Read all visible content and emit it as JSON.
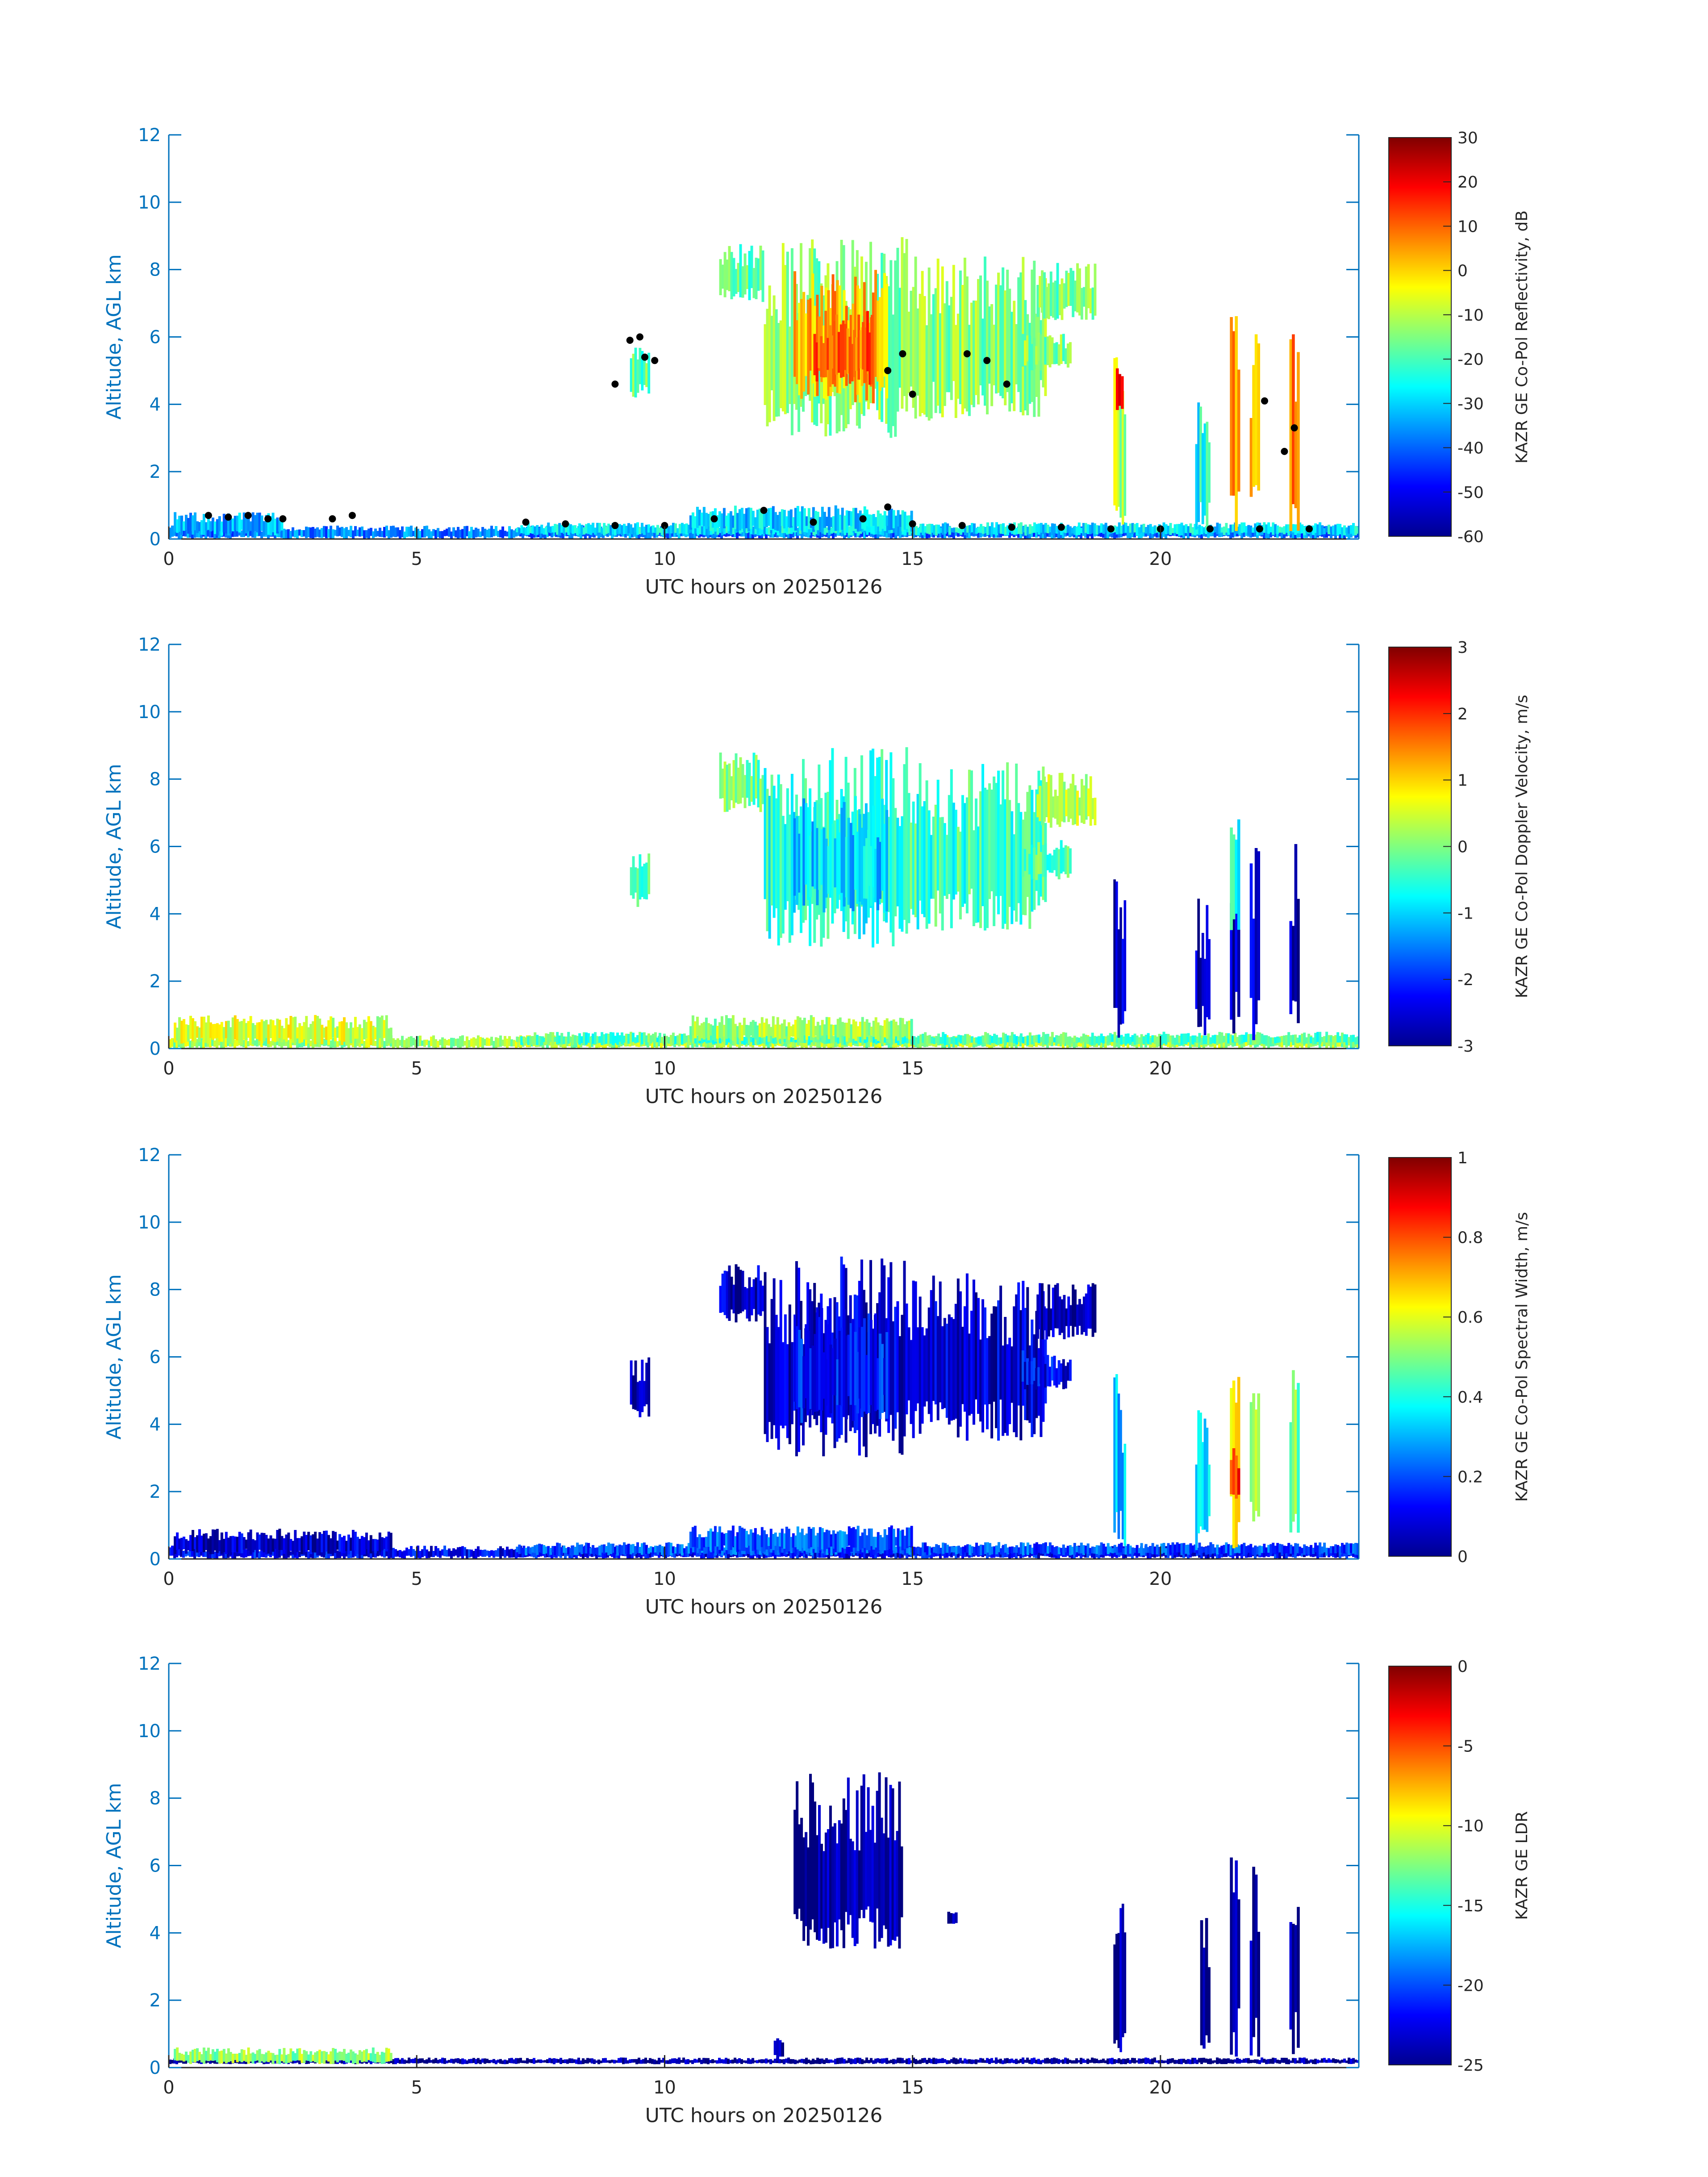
{
  "colors": {
    "axis": "#0072bd",
    "text": "#262626",
    "background": "#ffffff",
    "colormap": "jet"
  },
  "chart_data": [
    {
      "type": "heatmap",
      "xlabel": "UTC hours on 20250126",
      "ylabel": "Altitude, AGL km",
      "xlim": [
        0,
        24
      ],
      "ylim": [
        0,
        12
      ],
      "xticks": [
        "0",
        "5",
        "10",
        "15",
        "20"
      ],
      "xtick_values": [
        0,
        5,
        10,
        15,
        20
      ],
      "yticks": [
        "0",
        "2",
        "4",
        "6",
        "8",
        "10",
        "12"
      ],
      "ytick_values": [
        0,
        2,
        4,
        6,
        8,
        10,
        12
      ],
      "colorbar": {
        "label": "KAZR GE Co-Pol Reflectivity, dB",
        "range": [
          -60,
          30
        ],
        "ticks": [
          "-60",
          "-50",
          "-40",
          "-30",
          "-20",
          "-10",
          "0",
          "10",
          "20",
          "30"
        ],
        "tick_values": [
          -60,
          -50,
          -40,
          -30,
          -20,
          -10,
          0,
          10,
          20,
          30
        ]
      },
      "regions": [
        {
          "x0": 0,
          "x1": 24,
          "y0": 0,
          "y1": 0.4,
          "value": -38
        },
        {
          "x0": 0.1,
          "x1": 2.3,
          "y0": 0.1,
          "y1": 0.8,
          "value": -33
        },
        {
          "x0": 7.0,
          "x1": 24,
          "y0": 0.1,
          "y1": 0.5,
          "value": -28
        },
        {
          "x0": 10.5,
          "x1": 15.0,
          "y0": 0.2,
          "y1": 1.0,
          "value": -30
        },
        {
          "x0": 9.3,
          "x1": 9.7,
          "y0": 4.2,
          "y1": 6.0,
          "value": -18
        },
        {
          "x0": 11.1,
          "x1": 12.0,
          "y0": 7.0,
          "y1": 8.8,
          "value": -18
        },
        {
          "x0": 12.0,
          "x1": 14.9,
          "y0": 3.0,
          "y1": 9.0,
          "value": -15
        },
        {
          "x0": 12.6,
          "x1": 14.5,
          "y0": 4.0,
          "y1": 8.0,
          "value": 3
        },
        {
          "x0": 13.0,
          "x1": 14.2,
          "y0": 4.5,
          "y1": 6.8,
          "value": 10
        },
        {
          "x0": 14.9,
          "x1": 17.7,
          "y0": 3.5,
          "y1": 8.5,
          "value": -14
        },
        {
          "x0": 17.5,
          "x1": 18.7,
          "y0": 6.5,
          "y1": 8.2,
          "value": -15
        },
        {
          "x0": 17.2,
          "x1": 18.2,
          "y0": 5.0,
          "y1": 6.2,
          "value": -15
        },
        {
          "x0": 19.05,
          "x1": 19.3,
          "y0": 0.2,
          "y1": 5.5,
          "value": -10
        },
        {
          "x0": 19.1,
          "x1": 19.25,
          "y0": 3.8,
          "y1": 5.3,
          "value": 15
        },
        {
          "x0": 20.7,
          "x1": 21.0,
          "y0": 0.2,
          "y1": 4.5,
          "value": -25
        },
        {
          "x0": 21.4,
          "x1": 21.6,
          "y0": 0.2,
          "y1": 6.9,
          "value": 5
        },
        {
          "x0": 21.8,
          "x1": 22.0,
          "y0": 0.2,
          "y1": 6.3,
          "value": 5
        },
        {
          "x0": 22.6,
          "x1": 22.8,
          "y0": 0.2,
          "y1": 6.1,
          "value": 8
        }
      ],
      "markers": [
        {
          "x": 0.8,
          "y": 0.7
        },
        {
          "x": 1.2,
          "y": 0.65
        },
        {
          "x": 1.6,
          "y": 0.7
        },
        {
          "x": 2.0,
          "y": 0.6
        },
        {
          "x": 2.3,
          "y": 0.6
        },
        {
          "x": 3.3,
          "y": 0.6
        },
        {
          "x": 3.7,
          "y": 0.7
        },
        {
          "x": 7.2,
          "y": 0.5
        },
        {
          "x": 8.0,
          "y": 0.45
        },
        {
          "x": 9.0,
          "y": 0.4
        },
        {
          "x": 10.0,
          "y": 0.4
        },
        {
          "x": 11.0,
          "y": 0.6
        },
        {
          "x": 12.0,
          "y": 0.85
        },
        {
          "x": 13.0,
          "y": 0.5
        },
        {
          "x": 14.0,
          "y": 0.6
        },
        {
          "x": 14.5,
          "y": 0.95
        },
        {
          "x": 15.0,
          "y": 0.45
        },
        {
          "x": 16.0,
          "y": 0.4
        },
        {
          "x": 17.0,
          "y": 0.35
        },
        {
          "x": 18.0,
          "y": 0.35
        },
        {
          "x": 19.0,
          "y": 0.3
        },
        {
          "x": 20.0,
          "y": 0.3
        },
        {
          "x": 21.0,
          "y": 0.3
        },
        {
          "x": 22.0,
          "y": 0.3
        },
        {
          "x": 23.0,
          "y": 0.3
        },
        {
          "x": 9.3,
          "y": 5.9
        },
        {
          "x": 9.5,
          "y": 6.0
        },
        {
          "x": 9.6,
          "y": 5.4
        },
        {
          "x": 9.8,
          "y": 5.3
        },
        {
          "x": 9.0,
          "y": 4.6
        },
        {
          "x": 14.5,
          "y": 5.0
        },
        {
          "x": 14.8,
          "y": 5.5
        },
        {
          "x": 15.0,
          "y": 4.3
        },
        {
          "x": 16.1,
          "y": 5.5
        },
        {
          "x": 16.5,
          "y": 5.3
        },
        {
          "x": 16.9,
          "y": 4.6
        },
        {
          "x": 22.1,
          "y": 4.1
        },
        {
          "x": 22.7,
          "y": 3.3
        },
        {
          "x": 22.5,
          "y": 2.6
        }
      ]
    },
    {
      "type": "heatmap",
      "xlabel": "UTC hours on 20250126",
      "ylabel": "Altitude, AGL km",
      "xlim": [
        0,
        24
      ],
      "ylim": [
        0,
        12
      ],
      "xticks": [
        "0",
        "5",
        "10",
        "15",
        "20"
      ],
      "xtick_values": [
        0,
        5,
        10,
        15,
        20
      ],
      "yticks": [
        "0",
        "2",
        "4",
        "6",
        "8",
        "10",
        "12"
      ],
      "ytick_values": [
        0,
        2,
        4,
        6,
        8,
        10,
        12
      ],
      "colorbar": {
        "label": "KAZR GE Co-Pol Doppler Velocity, m/s",
        "range": [
          -3,
          3
        ],
        "ticks": [
          "-3",
          "-2",
          "-1",
          "0",
          "1",
          "2",
          "3"
        ],
        "tick_values": [
          -3,
          -2,
          -1,
          0,
          1,
          2,
          3
        ]
      },
      "regions": [
        {
          "x0": 0,
          "x1": 24,
          "y0": 0,
          "y1": 0.4,
          "value": 0.2
        },
        {
          "x0": 0.1,
          "x1": 4.5,
          "y0": 0.1,
          "y1": 1.0,
          "value": 0.5
        },
        {
          "x0": 7.0,
          "x1": 24,
          "y0": 0.1,
          "y1": 0.5,
          "value": -0.3
        },
        {
          "x0": 10.5,
          "x1": 15.0,
          "y0": 0.2,
          "y1": 1.0,
          "value": 0.2
        },
        {
          "x0": 9.3,
          "x1": 9.7,
          "y0": 4.2,
          "y1": 6.0,
          "value": -0.5
        },
        {
          "x0": 11.1,
          "x1": 12.0,
          "y0": 7.0,
          "y1": 8.8,
          "value": -0.1
        },
        {
          "x0": 12.0,
          "x1": 14.9,
          "y0": 3.0,
          "y1": 9.0,
          "value": -0.6
        },
        {
          "x0": 12.6,
          "x1": 14.5,
          "y0": 4.0,
          "y1": 7.5,
          "value": -1.0
        },
        {
          "x0": 14.9,
          "x1": 17.7,
          "y0": 3.5,
          "y1": 8.5,
          "value": -0.4
        },
        {
          "x0": 17.5,
          "x1": 18.7,
          "y0": 6.5,
          "y1": 8.2,
          "value": 0.3
        },
        {
          "x0": 17.2,
          "x1": 18.2,
          "y0": 5.0,
          "y1": 6.2,
          "value": -0.3
        },
        {
          "x0": 19.05,
          "x1": 19.3,
          "y0": 0.2,
          "y1": 5.5,
          "value": -2.7
        },
        {
          "x0": 20.7,
          "x1": 21.0,
          "y0": 0.2,
          "y1": 4.5,
          "value": -2.6
        },
        {
          "x0": 21.4,
          "x1": 21.6,
          "y0": 0.2,
          "y1": 6.9,
          "value": -2.5
        },
        {
          "x0": 21.4,
          "x1": 21.6,
          "y0": 3.5,
          "y1": 6.9,
          "value": -0.5
        },
        {
          "x0": 21.8,
          "x1": 22.0,
          "y0": 0.2,
          "y1": 6.3,
          "value": -2.6
        },
        {
          "x0": 22.6,
          "x1": 22.8,
          "y0": 0.2,
          "y1": 6.1,
          "value": -2.7
        }
      ]
    },
    {
      "type": "heatmap",
      "xlabel": "UTC hours on 20250126",
      "ylabel": "Altitude, AGL km",
      "xlim": [
        0,
        24
      ],
      "ylim": [
        0,
        12
      ],
      "xticks": [
        "0",
        "5",
        "10",
        "15",
        "20"
      ],
      "xtick_values": [
        0,
        5,
        10,
        15,
        20
      ],
      "yticks": [
        "0",
        "2",
        "4",
        "6",
        "8",
        "10",
        "12"
      ],
      "ytick_values": [
        0,
        2,
        4,
        6,
        8,
        10,
        12
      ],
      "colorbar": {
        "label": "KAZR GE Co-Pol Spectral Width, m/s",
        "range": [
          0,
          1
        ],
        "ticks": [
          "0",
          "0.2",
          "0.4",
          "0.6",
          "0.8",
          "1"
        ],
        "tick_values": [
          0,
          0.2,
          0.4,
          0.6,
          0.8,
          1
        ]
      },
      "regions": [
        {
          "x0": 0,
          "x1": 24,
          "y0": 0,
          "y1": 0.4,
          "value": 0.12
        },
        {
          "x0": 0.1,
          "x1": 4.5,
          "y0": 0.1,
          "y1": 0.9,
          "value": 0.08
        },
        {
          "x0": 7.0,
          "x1": 24,
          "y0": 0.1,
          "y1": 0.5,
          "value": 0.2
        },
        {
          "x0": 10.5,
          "x1": 15.0,
          "y0": 0.2,
          "y1": 1.0,
          "value": 0.22
        },
        {
          "x0": 9.3,
          "x1": 9.7,
          "y0": 4.2,
          "y1": 6.0,
          "value": 0.05
        },
        {
          "x0": 11.1,
          "x1": 12.0,
          "y0": 7.0,
          "y1": 8.8,
          "value": 0.06
        },
        {
          "x0": 12.0,
          "x1": 14.9,
          "y0": 3.0,
          "y1": 9.0,
          "value": 0.08
        },
        {
          "x0": 12.6,
          "x1": 14.5,
          "y0": 4.0,
          "y1": 7.5,
          "value": 0.15
        },
        {
          "x0": 14.9,
          "x1": 17.7,
          "y0": 3.5,
          "y1": 8.5,
          "value": 0.08
        },
        {
          "x0": 17.5,
          "x1": 18.7,
          "y0": 6.5,
          "y1": 8.2,
          "value": 0.06
        },
        {
          "x0": 17.2,
          "x1": 18.2,
          "y0": 5.0,
          "y1": 6.2,
          "value": 0.12
        },
        {
          "x0": 19.05,
          "x1": 19.3,
          "y0": 0.2,
          "y1": 5.5,
          "value": 0.3
        },
        {
          "x0": 20.7,
          "x1": 21.0,
          "y0": 0.2,
          "y1": 4.5,
          "value": 0.35
        },
        {
          "x0": 21.4,
          "x1": 21.6,
          "y0": 0.2,
          "y1": 6.9,
          "value": 0.6
        },
        {
          "x0": 21.4,
          "x1": 21.6,
          "y0": 1.5,
          "y1": 3.5,
          "value": 0.85
        },
        {
          "x0": 21.8,
          "x1": 22.0,
          "y0": 0.2,
          "y1": 6.3,
          "value": 0.55
        },
        {
          "x0": 22.6,
          "x1": 22.8,
          "y0": 0.2,
          "y1": 6.1,
          "value": 0.5
        }
      ]
    },
    {
      "type": "heatmap",
      "xlabel": "UTC hours on 20250126",
      "ylabel": "Altitude, AGL km",
      "xlim": [
        0,
        24
      ],
      "ylim": [
        0,
        12
      ],
      "xticks": [
        "0",
        "5",
        "10",
        "15",
        "20"
      ],
      "xtick_values": [
        0,
        5,
        10,
        15,
        20
      ],
      "yticks": [
        "0",
        "2",
        "4",
        "6",
        "8",
        "10",
        "12"
      ],
      "ytick_values": [
        0,
        2,
        4,
        6,
        8,
        10,
        12
      ],
      "colorbar": {
        "label": "KAZR GE LDR",
        "range": [
          -25,
          0
        ],
        "ticks": [
          "-25",
          "-20",
          "-15",
          "-10",
          "-5",
          "0"
        ],
        "tick_values": [
          -25,
          -20,
          -15,
          -10,
          -5,
          0
        ]
      },
      "regions": [
        {
          "x0": 0,
          "x1": 24,
          "y0": 0.1,
          "y1": 0.3,
          "value": -24.5
        },
        {
          "x0": 0.1,
          "x1": 4.5,
          "y0": 0.1,
          "y1": 0.6,
          "value": -12
        },
        {
          "x0": 12.6,
          "x1": 14.8,
          "y0": 3.5,
          "y1": 8.8,
          "value": -24.5
        },
        {
          "x0": 12.2,
          "x1": 12.4,
          "y0": 0.2,
          "y1": 1.0,
          "value": -24.5
        },
        {
          "x0": 15.7,
          "x1": 15.9,
          "y0": 4.2,
          "y1": 4.7,
          "value": -24.5
        },
        {
          "x0": 19.05,
          "x1": 19.3,
          "y0": 0.2,
          "y1": 5.3,
          "value": -24.5
        },
        {
          "x0": 20.8,
          "x1": 21.0,
          "y0": 0.2,
          "y1": 4.5,
          "value": -24.5
        },
        {
          "x0": 21.4,
          "x1": 21.6,
          "y0": 0.2,
          "y1": 6.7,
          "value": -24.5
        },
        {
          "x0": 21.8,
          "x1": 22.0,
          "y0": 0.2,
          "y1": 6.2,
          "value": -24.5
        },
        {
          "x0": 22.6,
          "x1": 22.8,
          "y0": 0.2,
          "y1": 6.1,
          "value": -24.5
        }
      ]
    }
  ]
}
